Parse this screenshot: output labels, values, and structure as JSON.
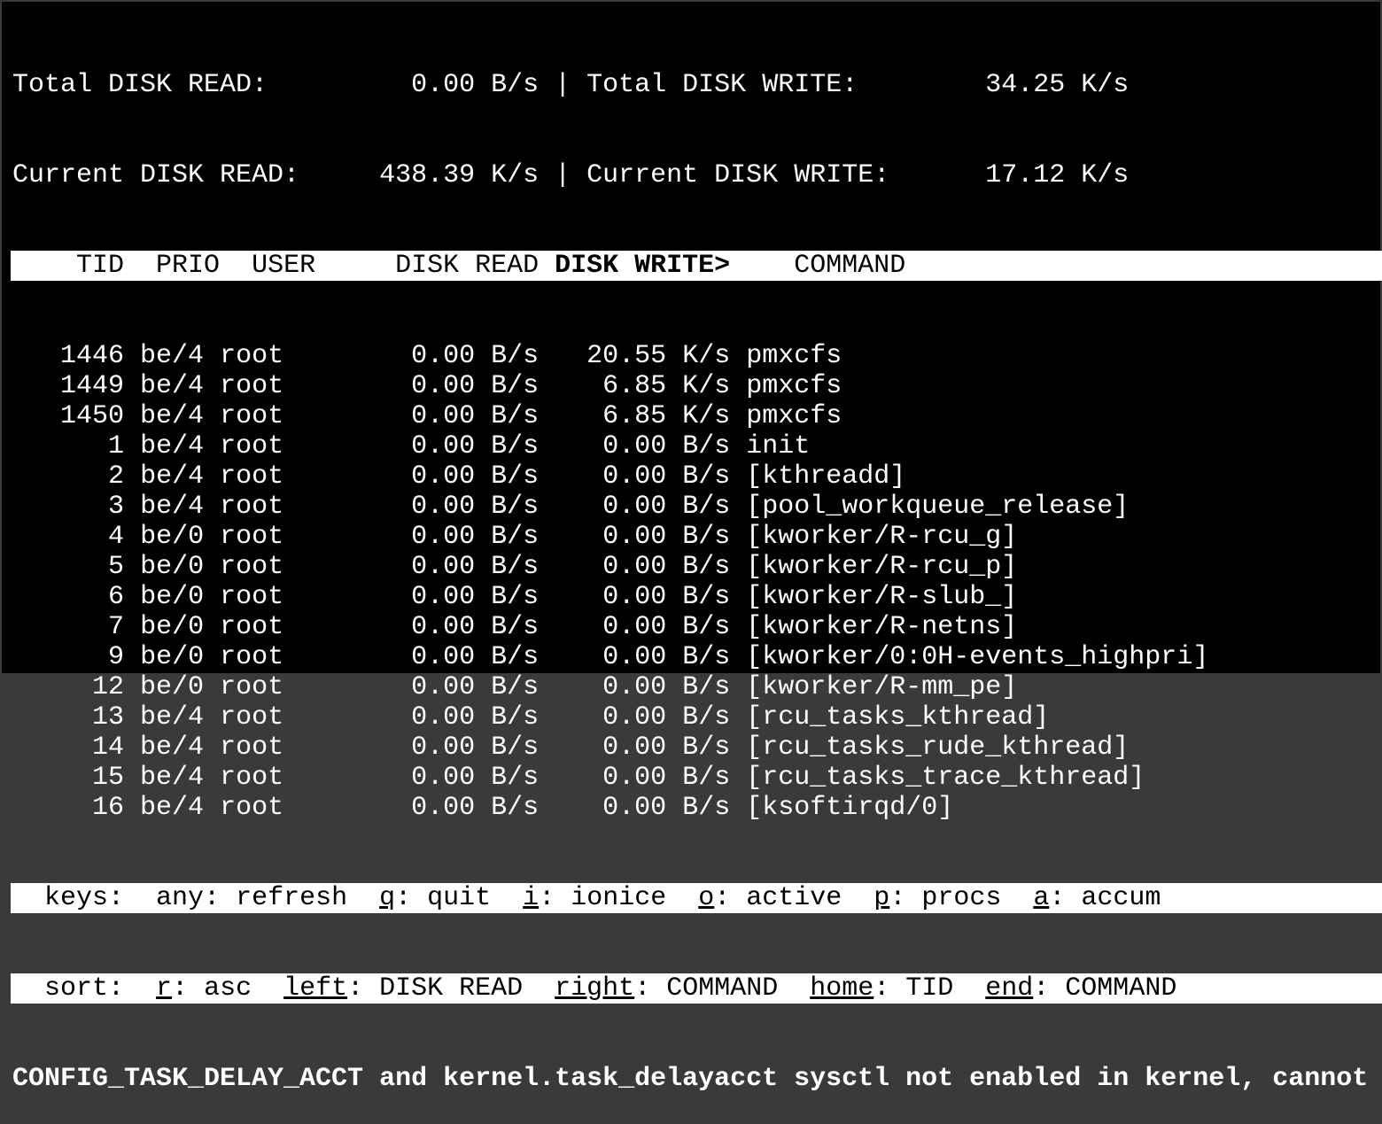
{
  "summary": {
    "total_read_label": "Total DISK READ:",
    "total_read_value": "0.00 B/s",
    "total_write_label": "Total DISK WRITE:",
    "total_write_value": "34.25 K/s",
    "current_read_label": "Current DISK READ:",
    "current_read_value": "438.39 K/s",
    "current_write_label": "Current DISK WRITE:",
    "current_write_value": "17.12 K/s",
    "separator": "|"
  },
  "header": {
    "tid": "TID",
    "prio": "PRIO",
    "user": "USER",
    "disk_read": "DISK READ",
    "disk_write": "DISK WRITE>",
    "command": "COMMAND",
    "sorted_column": "DISK WRITE>"
  },
  "rows": [
    {
      "tid": "1446",
      "prio": "be/4",
      "user": "root",
      "read": "0.00 B/s",
      "write": "20.55 K/s",
      "command": "pmxcfs"
    },
    {
      "tid": "1449",
      "prio": "be/4",
      "user": "root",
      "read": "0.00 B/s",
      "write": "6.85 K/s",
      "command": "pmxcfs"
    },
    {
      "tid": "1450",
      "prio": "be/4",
      "user": "root",
      "read": "0.00 B/s",
      "write": "6.85 K/s",
      "command": "pmxcfs"
    },
    {
      "tid": "1",
      "prio": "be/4",
      "user": "root",
      "read": "0.00 B/s",
      "write": "0.00 B/s",
      "command": "init"
    },
    {
      "tid": "2",
      "prio": "be/4",
      "user": "root",
      "read": "0.00 B/s",
      "write": "0.00 B/s",
      "command": "[kthreadd]"
    },
    {
      "tid": "3",
      "prio": "be/4",
      "user": "root",
      "read": "0.00 B/s",
      "write": "0.00 B/s",
      "command": "[pool_workqueue_release]"
    },
    {
      "tid": "4",
      "prio": "be/0",
      "user": "root",
      "read": "0.00 B/s",
      "write": "0.00 B/s",
      "command": "[kworker/R-rcu_g]"
    },
    {
      "tid": "5",
      "prio": "be/0",
      "user": "root",
      "read": "0.00 B/s",
      "write": "0.00 B/s",
      "command": "[kworker/R-rcu_p]"
    },
    {
      "tid": "6",
      "prio": "be/0",
      "user": "root",
      "read": "0.00 B/s",
      "write": "0.00 B/s",
      "command": "[kworker/R-slub_]"
    },
    {
      "tid": "7",
      "prio": "be/0",
      "user": "root",
      "read": "0.00 B/s",
      "write": "0.00 B/s",
      "command": "[kworker/R-netns]"
    },
    {
      "tid": "9",
      "prio": "be/0",
      "user": "root",
      "read": "0.00 B/s",
      "write": "0.00 B/s",
      "command": "[kworker/0:0H-events_highpri]"
    },
    {
      "tid": "12",
      "prio": "be/0",
      "user": "root",
      "read": "0.00 B/s",
      "write": "0.00 B/s",
      "command": "[kworker/R-mm_pe]"
    },
    {
      "tid": "13",
      "prio": "be/4",
      "user": "root",
      "read": "0.00 B/s",
      "write": "0.00 B/s",
      "command": "[rcu_tasks_kthread]"
    },
    {
      "tid": "14",
      "prio": "be/4",
      "user": "root",
      "read": "0.00 B/s",
      "write": "0.00 B/s",
      "command": "[rcu_tasks_rude_kthread]"
    },
    {
      "tid": "15",
      "prio": "be/4",
      "user": "root",
      "read": "0.00 B/s",
      "write": "0.00 B/s",
      "command": "[rcu_tasks_trace_kthread]"
    },
    {
      "tid": "16",
      "prio": "be/4",
      "user": "root",
      "read": "0.00 B/s",
      "write": "0.00 B/s",
      "command": "[ksoftirqd/0]"
    }
  ],
  "footer": {
    "keys_label": "keys:",
    "keys": [
      {
        "key": "any",
        "label": ": refresh",
        "underline": false
      },
      {
        "key": "q",
        "label": ": quit",
        "underline": true
      },
      {
        "key": "i",
        "label": ": ionice",
        "underline": true
      },
      {
        "key": "o",
        "label": ": active",
        "underline": true
      },
      {
        "key": "p",
        "label": ": procs",
        "underline": true
      },
      {
        "key": "a",
        "label": ": accum",
        "underline": true
      }
    ],
    "sort_label": "sort:",
    "sort": [
      {
        "key": "r",
        "label": ": asc",
        "underline": true
      },
      {
        "key": "left",
        "label": ": DISK READ",
        "underline": true
      },
      {
        "key": "right",
        "label": ": COMMAND",
        "underline": true
      },
      {
        "key": "home",
        "label": ": TID",
        "underline": true
      },
      {
        "key": "end",
        "label": ": COMMAND",
        "underline": true
      }
    ]
  },
  "status_message": "CONFIG_TASK_DELAY_ACCT and kernel.task_delayacct sysctl not enabled in kernel, cannot"
}
